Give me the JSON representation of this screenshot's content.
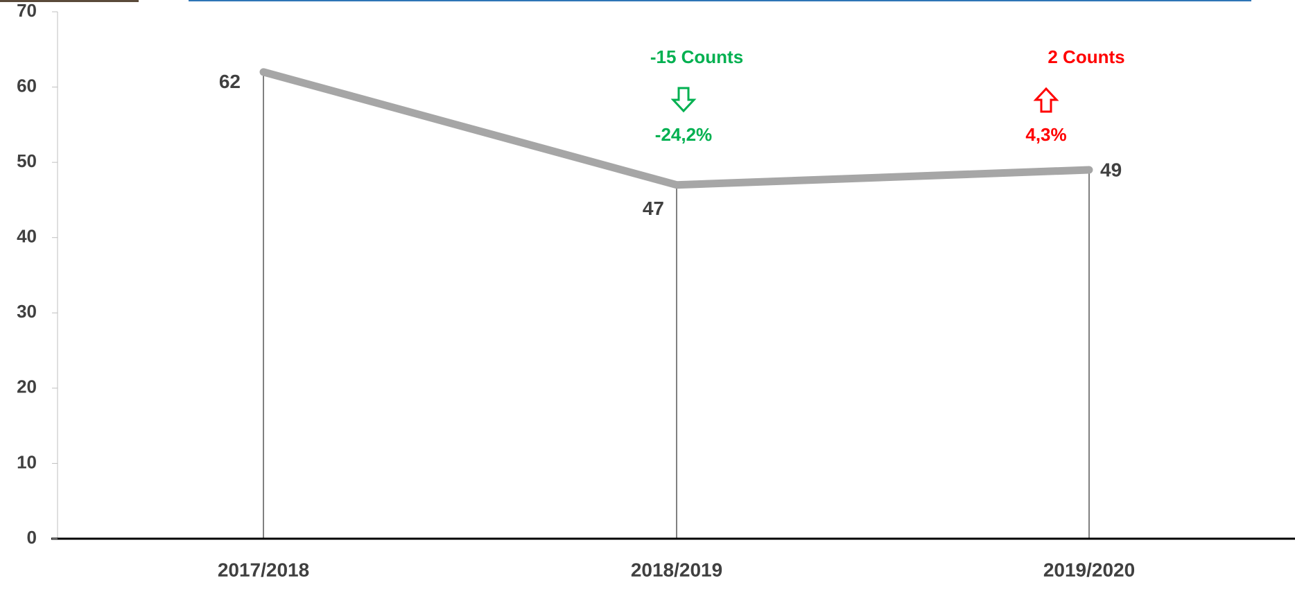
{
  "chart_data": {
    "type": "line",
    "categories": [
      "2017/2018",
      "2018/2019",
      "2019/2020"
    ],
    "values": [
      62,
      47,
      49
    ],
    "color": "#a6a6a6",
    "ylim": [
      0,
      70
    ],
    "yticks": [
      0,
      10,
      20,
      30,
      40,
      50,
      60,
      70
    ],
    "drop_lines": true,
    "annotations": [
      {
        "category": 1,
        "lines": [
          "-15 Counts",
          "-24,2%"
        ],
        "direction": "down",
        "color": "#00b050"
      },
      {
        "category": 2,
        "lines": [
          "2 Counts",
          "4,3%"
        ],
        "direction": "up",
        "color": "#ff0000"
      }
    ]
  }
}
